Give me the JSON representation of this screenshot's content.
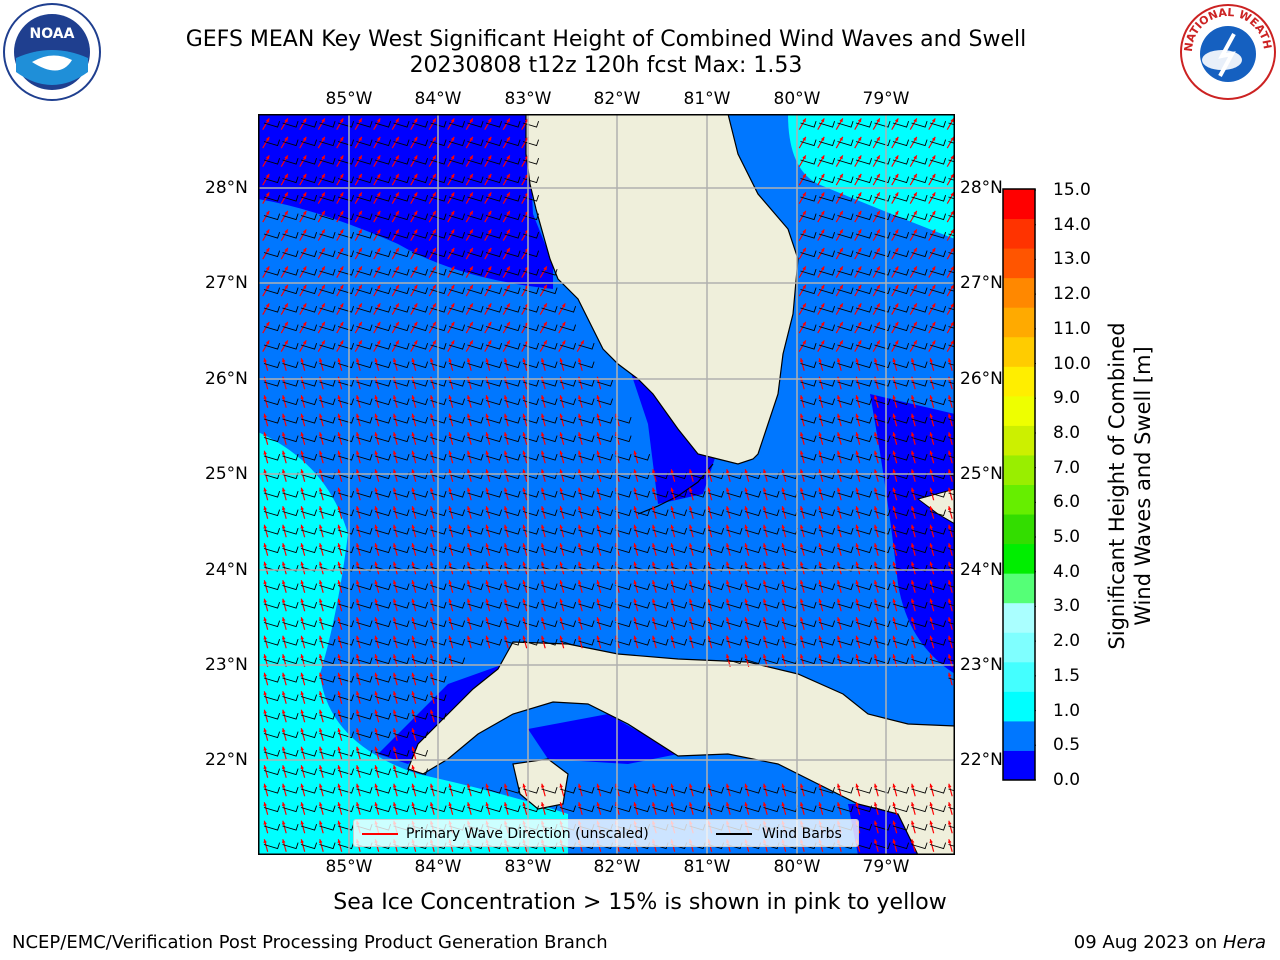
{
  "title": {
    "line1": "GEFS MEAN Key West Significant Height of Combined Wind Waves and Swell",
    "line2": "20230808 t12z 120h fcst   Max: 1.53"
  },
  "logos": {
    "left": {
      "name": "noaa-logo",
      "text": "NOAA"
    },
    "right": {
      "name": "nws-logo",
      "text": "NATIONAL WEATHER SERVICE"
    }
  },
  "map": {
    "lon_labels": [
      "85°W",
      "84°W",
      "83°W",
      "82°W",
      "81°W",
      "80°W",
      "79°W"
    ],
    "lat_labels": [
      "28°N",
      "27°N",
      "26°N",
      "25°N",
      "24°N",
      "23°N",
      "22°N"
    ],
    "lon_range": [
      -86.0,
      -78.2
    ],
    "lat_range": [
      21.0,
      28.8
    ]
  },
  "legend": {
    "wave_label": "Primary Wave Direction (unscaled)",
    "barb_label": "Wind Barbs",
    "wave_color": "#ff0000",
    "barb_color": "#000000"
  },
  "colorbar": {
    "label_line1": "Significant Height of Combined",
    "label_line2": "Wind Waves and Swell [m]",
    "ticks": [
      "0.0",
      "0.5",
      "1.0",
      "1.5",
      "2.0",
      "3.0",
      "4.0",
      "5.0",
      "6.0",
      "7.0",
      "8.0",
      "9.0",
      "10.0",
      "11.0",
      "12.0",
      "13.0",
      "14.0",
      "15.0"
    ],
    "colors": [
      "#0000ff",
      "#0077ff",
      "#00ffff",
      "#44ffff",
      "#7fffff",
      "#aaffff",
      "#55ff77",
      "#00ee00",
      "#33dd00",
      "#66ee00",
      "#99ee00",
      "#ccf000",
      "#eeff00",
      "#ffee00",
      "#ffcc00",
      "#ffaa00",
      "#ff8800",
      "#ff5500",
      "#ff3300",
      "#ff0000"
    ]
  },
  "field_colors": {
    "very_low": "#0000ff",
    "low": "#0077ff",
    "mid": "#00ffff",
    "land": "#efefdb",
    "ocean_white": "#ffffff"
  },
  "subtitle": "Sea Ice Concentration > 15% is shown in pink to yellow",
  "footer": {
    "left": "NCEP/EMC/Verification Post Processing Product Generation Branch",
    "right_prefix": "09 Aug 2023 on ",
    "right_machine": "Hera"
  }
}
